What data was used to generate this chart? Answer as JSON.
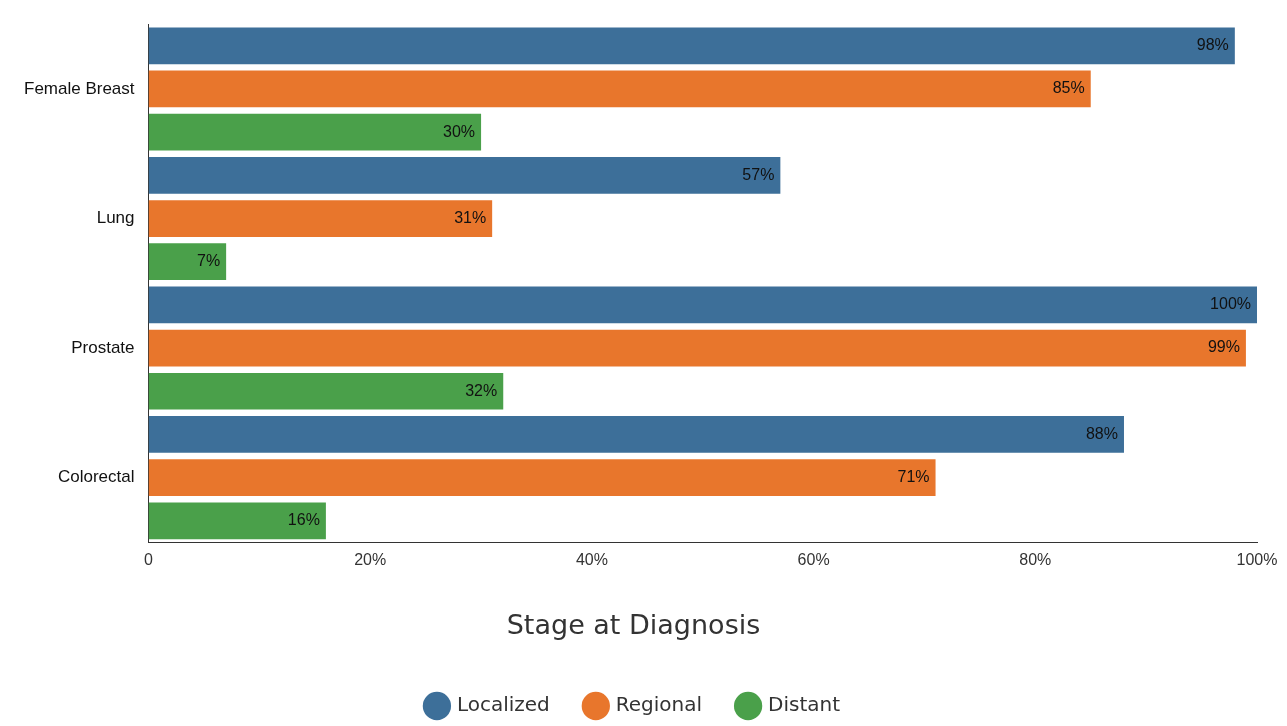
{
  "chart_data": {
    "type": "bar",
    "orientation": "horizontal",
    "legend_title": "Stage at Diagnosis",
    "categories": [
      "Female Breast",
      "Lung",
      "Prostate",
      "Colorectal"
    ],
    "series": [
      {
        "name": "Localized",
        "color": "#3d6f99",
        "values": [
          98,
          57,
          100,
          88
        ],
        "value_labels": [
          "98%",
          "57%",
          "100%",
          "88%"
        ]
      },
      {
        "name": "Regional",
        "color": "#e8762c",
        "values": [
          85,
          31,
          99,
          71
        ],
        "value_labels": [
          "85%",
          "31%",
          "99%",
          "71%"
        ]
      },
      {
        "name": "Distant",
        "color": "#4aa04a",
        "values": [
          30,
          7,
          32,
          16
        ],
        "value_labels": [
          "30%",
          "7%",
          "32%",
          "16%"
        ]
      }
    ],
    "xlim": [
      0,
      100
    ],
    "xticks": [
      0,
      {
        "value": 20,
        "label": "20%"
      },
      {
        "value": 40,
        "label": "40%"
      },
      {
        "value": 60,
        "label": "60%"
      },
      {
        "value": 80,
        "label": "80%"
      },
      {
        "value": 100,
        "label": "100%"
      }
    ],
    "grid": false,
    "legend": "bottom"
  }
}
